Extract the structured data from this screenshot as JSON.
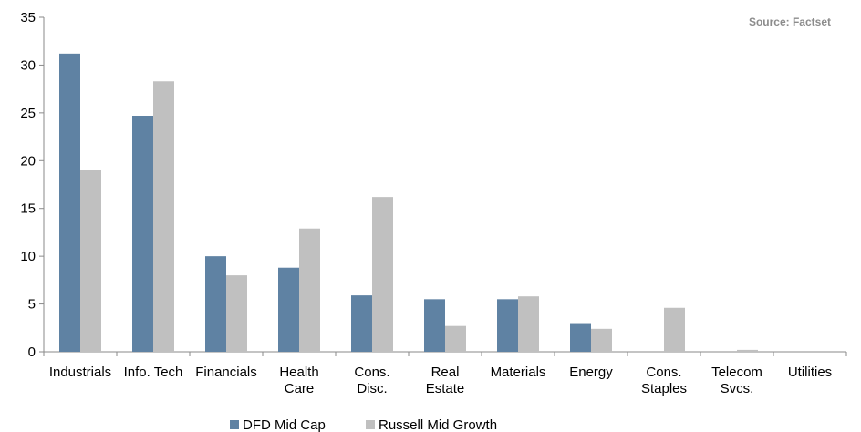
{
  "chart_data": {
    "type": "bar",
    "categories": [
      [
        "Industrials"
      ],
      [
        "Info. Tech"
      ],
      [
        "Financials"
      ],
      [
        "Health",
        "Care"
      ],
      [
        "Cons.",
        "Disc."
      ],
      [
        "Real",
        "Estate"
      ],
      [
        "Materials"
      ],
      [
        "Energy"
      ],
      [
        "Cons.",
        "Staples"
      ],
      [
        "Telecom",
        "Svcs."
      ],
      [
        "Utilities"
      ]
    ],
    "series": [
      {
        "name": "DFD Mid Cap",
        "color": "#5f82a3",
        "values": [
          31.2,
          24.7,
          10.0,
          8.8,
          5.9,
          5.5,
          5.5,
          3.0,
          0,
          0,
          0
        ]
      },
      {
        "name": "Russell Mid Growth",
        "color": "#c0c0c0",
        "values": [
          19.0,
          28.3,
          8.0,
          12.9,
          16.2,
          2.7,
          5.8,
          2.4,
          4.6,
          0.2,
          0
        ]
      }
    ],
    "yticks": [
      "0",
      "5",
      "10",
      "15",
      "20",
      "25",
      "30",
      "35"
    ],
    "ylim": [
      0,
      35
    ],
    "grid": false,
    "legend_position": "bottom-center",
    "annotation": "Source: Factset"
  }
}
